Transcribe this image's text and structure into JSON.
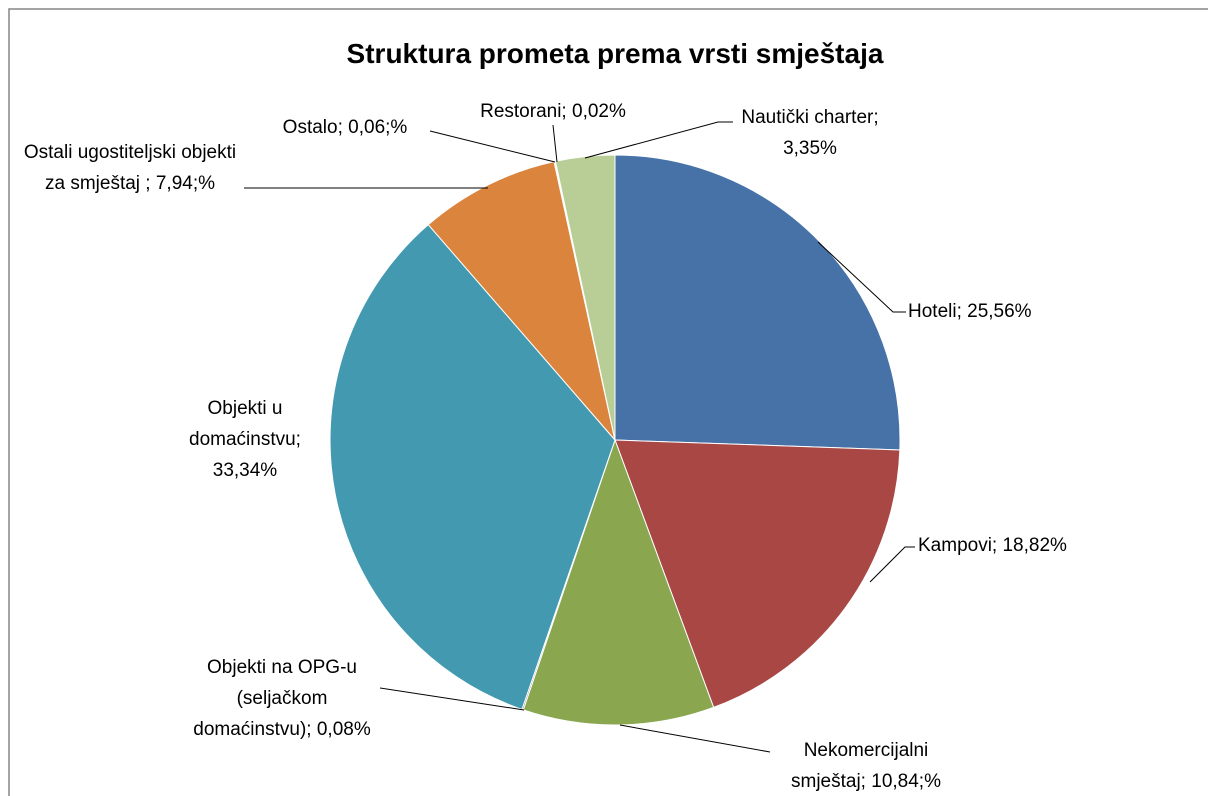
{
  "chart_data": {
    "type": "pie",
    "title": "Struktura prometa prema vrsti smještaja",
    "categories": [
      "Hoteli;",
      "Kampovi;",
      "Nekomercijalni smještaj;",
      "Objekti na OPG-u (seljačkom domaćinstvu);",
      "Objekti u domaćinstvu;",
      "Ostali ugostiteljski objekti za smještaj ;",
      "Ostalo;",
      "Restorani;",
      "Nautički charter;"
    ],
    "values": [
      25.56,
      18.82,
      10.84,
      0.08,
      33.34,
      7.94,
      0.06,
      0.02,
      3.35
    ],
    "value_labels": [
      "25,56%",
      "18,82%",
      "10,84;%",
      "0,08%",
      "33,34%",
      "7,94;%",
      "0,06;%",
      "0,02%",
      "3,35%"
    ],
    "colors": [
      "#4672a8",
      "#a94745",
      "#8aa64f",
      "#71588f",
      "#4299b0",
      "#db843d",
      "#93a9cf",
      "#d19392",
      "#b9cd96"
    ]
  }
}
